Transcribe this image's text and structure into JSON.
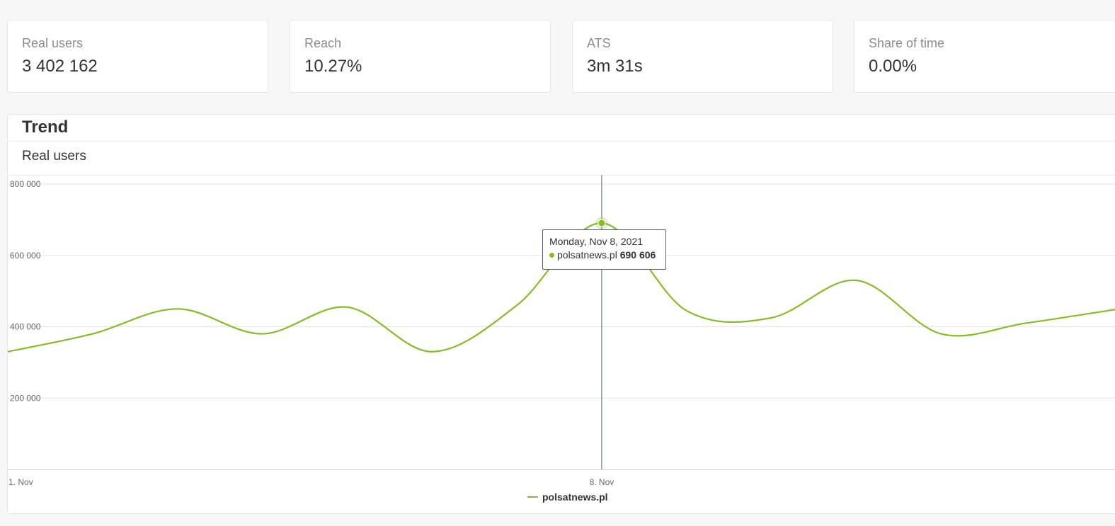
{
  "kpis": [
    {
      "label": "Real users",
      "value": "3 402 162"
    },
    {
      "label": "Reach",
      "value": "10.27%"
    },
    {
      "label": "ATS",
      "value": "3m 31s"
    },
    {
      "label": "Share of time",
      "value": "0.00%"
    }
  ],
  "trend": {
    "title": "Trend",
    "metric": "Real users"
  },
  "tooltip": {
    "date": "Monday, Nov 8, 2021",
    "series": "polsatnews.pl",
    "value": "690 606"
  },
  "colors": {
    "series": "#86bc24",
    "crosshair": "#55627a",
    "grid": "#e6e6e6"
  },
  "chart_data": {
    "type": "line",
    "ylim": [
      0,
      800000
    ],
    "y_ticks": [
      {
        "value": 200000,
        "label": "200 000"
      },
      {
        "value": 400000,
        "label": "400 000"
      },
      {
        "value": 600000,
        "label": "600 000"
      },
      {
        "value": 800000,
        "label": "800 000"
      }
    ],
    "x_ticks": [
      {
        "value": 1,
        "label": "1. Nov"
      },
      {
        "value": 8,
        "label": "8. Nov"
      }
    ],
    "xlim": [
      1,
      14.1
    ],
    "series": [
      {
        "name": "polsatnews.pl",
        "x": [
          1,
          2,
          3,
          4,
          5,
          6,
          7,
          8,
          9,
          10,
          11,
          12,
          13,
          14.1
        ],
        "values": [
          330000,
          380000,
          450000,
          380000,
          455000,
          330000,
          460000,
          690606,
          445000,
          425000,
          530000,
          380000,
          410000,
          450000
        ]
      }
    ],
    "highlight": {
      "x": 8,
      "value": 690606
    },
    "legend": "bottom-center",
    "grid": true
  }
}
